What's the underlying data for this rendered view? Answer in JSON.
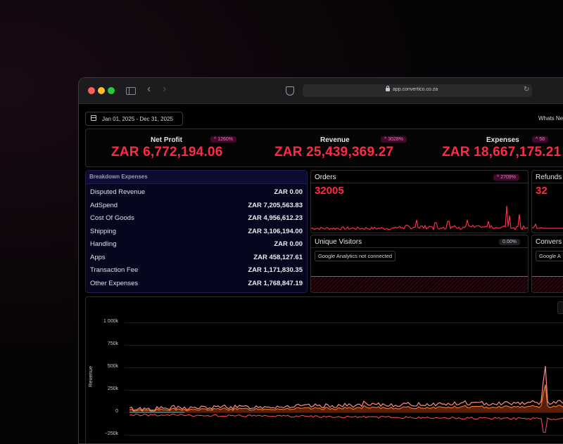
{
  "browser": {
    "url": "app.convertico.co.za"
  },
  "toolbar": {
    "date_range": "Jan 01, 2025 - Dec 31, 2025",
    "whats_new": "Whats Ne"
  },
  "kpis": [
    {
      "name": "Net Profit",
      "badge": "^ 1260%",
      "value": "ZAR 6,772,194.06"
    },
    {
      "name": "Revenue",
      "badge": "^ 3028%",
      "value": "ZAR 25,439,369.27"
    },
    {
      "name": "Expenses",
      "badge": "^ 58",
      "value": "ZAR 18,667,175.21"
    }
  ],
  "breakdown": {
    "title": "Breakdown Expenses",
    "rows": [
      {
        "label": "Disputed Revenue",
        "value": "ZAR 0.00"
      },
      {
        "label": "AdSpend",
        "value": "ZAR 7,205,563.83"
      },
      {
        "label": "Cost Of Goods",
        "value": "ZAR 4,956,612.23"
      },
      {
        "label": "Shipping",
        "value": "ZAR 3,106,194.00"
      },
      {
        "label": "Handling",
        "value": "ZAR 0.00"
      },
      {
        "label": "Apps",
        "value": "ZAR 458,127.61"
      },
      {
        "label": "Transaction Fee",
        "value": "ZAR 1,171,830.35"
      },
      {
        "label": "Other Expenses",
        "value": "ZAR 1,768,847.19"
      }
    ]
  },
  "orders": {
    "title": "Orders",
    "badge": "^ 2709%",
    "value": "32005"
  },
  "refunds": {
    "title": "Refunds",
    "value": "32"
  },
  "visitors": {
    "title": "Unique Visitors",
    "badge": "0.00%",
    "status": "Google Analytics not connected"
  },
  "conversion": {
    "title": "Convers",
    "status": "Google A"
  },
  "revenue_chart": {
    "ylabel": "Revenue",
    "yticks": [
      "1 000k",
      "750k",
      "500k",
      "250k",
      "0",
      "−250k"
    ]
  },
  "colors": {
    "accent": "#ff2a45",
    "badge_text": "#ff6ec7",
    "badge_bg": "#3d0a2a"
  }
}
